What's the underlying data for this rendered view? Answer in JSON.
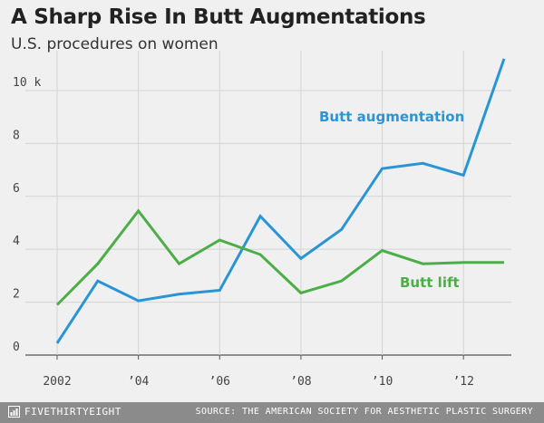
{
  "header": {
    "title": "A Sharp Rise In Butt Augmentations",
    "subtitle": "U.S. procedures on women"
  },
  "chart_data": {
    "type": "line",
    "title": "A Sharp Rise In Butt Augmentations",
    "subtitle": "U.S. procedures on women",
    "x": [
      2002,
      2003,
      2004,
      2005,
      2006,
      2007,
      2008,
      2009,
      2010,
      2011,
      2012,
      2013
    ],
    "xticks": [
      2002,
      2004,
      2006,
      2008,
      2010,
      2012
    ],
    "xtick_labels": [
      "2002",
      "’04",
      "’06",
      "’08",
      "’10",
      "’12"
    ],
    "yticks": [
      0,
      2,
      4,
      6,
      8,
      10
    ],
    "ytick_labels": [
      "0",
      "2",
      "4",
      "6",
      "8",
      "10 k"
    ],
    "ylim": [
      0,
      11.3
    ],
    "xlim": [
      2002,
      2013
    ],
    "grid": true,
    "series": [
      {
        "name": "Butt augmentation",
        "color": "#2a95d5",
        "values": [
          0.45,
          2.8,
          2.05,
          2.3,
          2.45,
          5.25,
          3.65,
          4.75,
          7.05,
          7.25,
          6.8,
          11.2
        ]
      },
      {
        "name": "Butt lift",
        "color": "#4cae46",
        "values": [
          1.9,
          3.45,
          5.45,
          3.45,
          4.35,
          3.8,
          2.35,
          2.8,
          3.95,
          3.45,
          3.5,
          3.5
        ]
      }
    ]
  },
  "footer": {
    "brand": "FIVETHIRTYEIGHT",
    "brand_icon": "fivethirtyeight-logo-icon",
    "source": "SOURCE: THE AMERICAN SOCIETY FOR AESTHETIC PLASTIC SURGERY"
  }
}
